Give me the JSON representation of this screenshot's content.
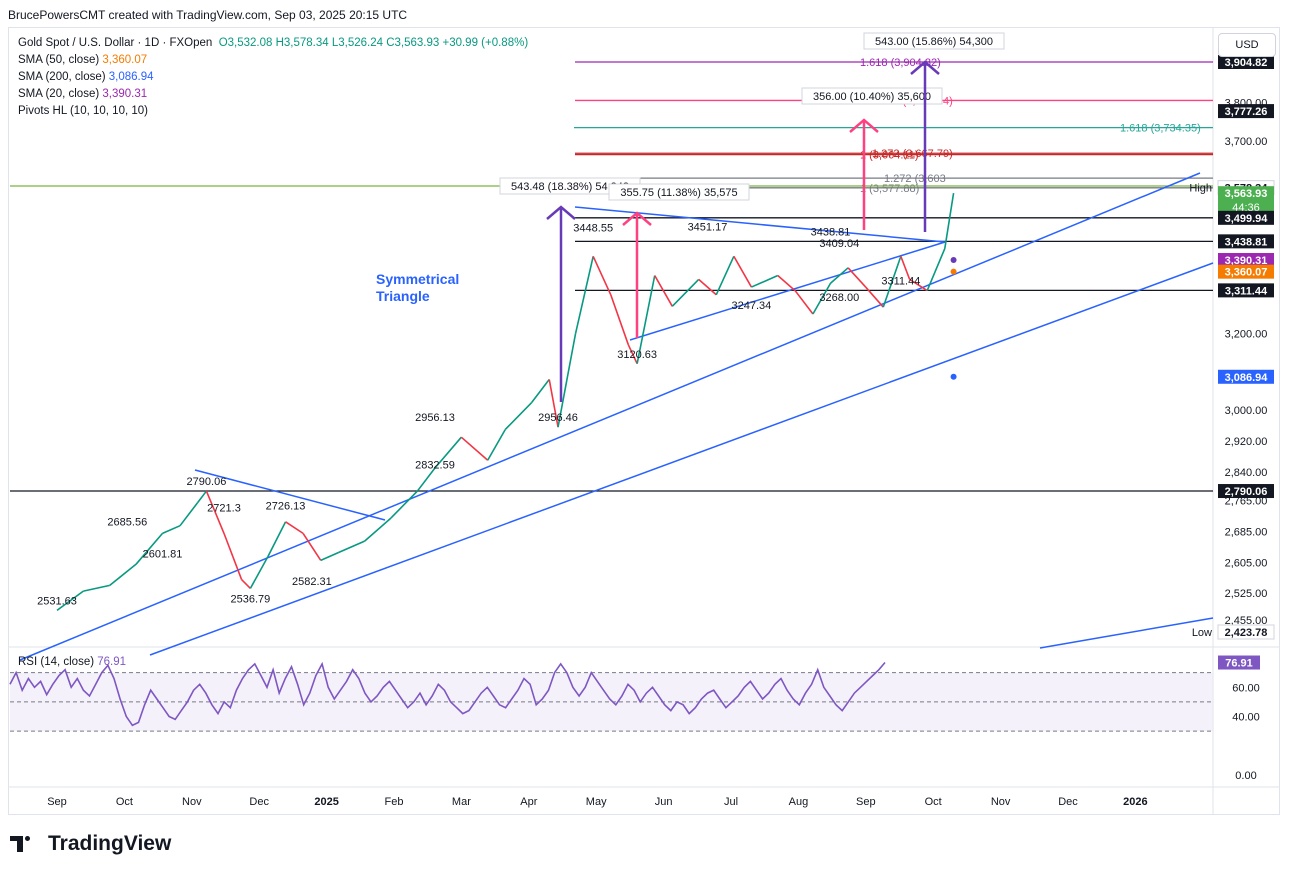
{
  "header": {
    "attribution": "BrucePowersCMT created with TradingView.com, Sep 03, 2025 20:15 UTC"
  },
  "legend": {
    "symbol": "Gold Spot / U.S. Dollar · 1D · FXOpen",
    "ohlc": "O3,532.08  H3,578.34  L3,526.24  C3,563.93  +30.99 (+0.88%)",
    "sma50": {
      "label": "SMA (50, close)",
      "value": "3,360.07",
      "color": "#f57c00"
    },
    "sma200": {
      "label": "SMA (200, close)",
      "value": "3,086.94",
      "color": "#2962ff"
    },
    "sma20": {
      "label": "SMA (20, close)",
      "value": "3,390.31",
      "color": "#9c27b0"
    },
    "pivots": "Pivots HL (10, 10, 10, 10)"
  },
  "currency": "USD",
  "branding": "TradingView",
  "colors": {
    "up": "#089981",
    "down": "#f23645",
    "trend": "#2962ff",
    "pattern": "#673ab7",
    "pink": "#ff4081",
    "rsi": "#7e57c2",
    "rsi_band": "#ede7f6",
    "green_level": "#7cb342"
  },
  "chart_data": {
    "type": "candlestick",
    "instrument": "XAUUSD",
    "timeframe": "1D",
    "ylim": [
      2400,
      3950
    ],
    "y_ticks": [
      3800.0,
      3700.0,
      3200.0,
      3000.0,
      2920.0,
      2840.0,
      2765.0,
      2685.0,
      2605.0,
      2525.0,
      2455.0
    ],
    "x_ticks": [
      "Sep",
      "Oct",
      "Nov",
      "Dec",
      "2025",
      "Feb",
      "Mar",
      "Apr",
      "May",
      "Jun",
      "Jul",
      "Aug",
      "Sep",
      "Oct",
      "Nov",
      "Dec",
      "2026"
    ],
    "price_path": [
      [
        2024.67,
        2480
      ],
      [
        2024.7,
        2530
      ],
      [
        2024.73,
        2545
      ],
      [
        2024.76,
        2600
      ],
      [
        2024.79,
        2680
      ],
      [
        2024.81,
        2700
      ],
      [
        2024.83,
        2760
      ],
      [
        2024.84,
        2790
      ],
      [
        2024.86,
        2680
      ],
      [
        2024.88,
        2560
      ],
      [
        2024.89,
        2537
      ],
      [
        2024.91,
        2620
      ],
      [
        2024.93,
        2710
      ],
      [
        2024.95,
        2680
      ],
      [
        2024.97,
        2610
      ],
      [
        2024.99,
        2630
      ],
      [
        2025.02,
        2660
      ],
      [
        2025.05,
        2720
      ],
      [
        2025.08,
        2790
      ],
      [
        2025.1,
        2850
      ],
      [
        2025.13,
        2930
      ],
      [
        2025.16,
        2870
      ],
      [
        2025.18,
        2950
      ],
      [
        2025.21,
        3020
      ],
      [
        2025.23,
        3080
      ],
      [
        2025.24,
        2956
      ],
      [
        2025.26,
        3200
      ],
      [
        2025.28,
        3400
      ],
      [
        2025.3,
        3300
      ],
      [
        2025.32,
        3170
      ],
      [
        2025.33,
        3121
      ],
      [
        2025.35,
        3350
      ],
      [
        2025.37,
        3270
      ],
      [
        2025.4,
        3340
      ],
      [
        2025.42,
        3300
      ],
      [
        2025.44,
        3400
      ],
      [
        2025.46,
        3320
      ],
      [
        2025.49,
        3350
      ],
      [
        2025.51,
        3310
      ],
      [
        2025.53,
        3250
      ],
      [
        2025.55,
        3330
      ],
      [
        2025.57,
        3370
      ],
      [
        2025.59,
        3320
      ],
      [
        2025.61,
        3268
      ],
      [
        2025.63,
        3400
      ],
      [
        2025.64,
        3340
      ],
      [
        2025.66,
        3311
      ],
      [
        2025.68,
        3420
      ],
      [
        2025.69,
        3564
      ]
    ],
    "last": {
      "open": 3532.08,
      "high": 3578.34,
      "low": 3526.24,
      "close": 3563.93,
      "change": 30.99,
      "change_pct": 0.88
    },
    "sma50": 3360.07,
    "sma200": 3086.94,
    "sma20": 3390.31,
    "price_scale_labels": [
      {
        "value": 3904.82,
        "text": "3,904.82"
      },
      {
        "value": 3777.26,
        "text": "3,777.26"
      },
      {
        "value": 3578.34,
        "text": "3,578.34",
        "caption": "High"
      },
      {
        "value": 3563.93,
        "text": "3,563.93",
        "sub": "44:36"
      },
      {
        "value": 3499.94,
        "text": "3,499.94"
      },
      {
        "value": 3438.81,
        "text": "3,438.81"
      },
      {
        "value": 3390.31,
        "text": "3,390.31"
      },
      {
        "value": 3360.07,
        "text": "3,360.07"
      },
      {
        "value": 3311.44,
        "text": "3,311.44"
      },
      {
        "value": 3086.94,
        "text": "3,086.94"
      },
      {
        "value": 2790.06,
        "text": "2,790.06"
      },
      {
        "value": 2423.78,
        "text": "2,423.78",
        "caption": "Low"
      }
    ],
    "pivot_labels": [
      {
        "x": 2024.67,
        "value": 2531.63,
        "text": "2531.63"
      },
      {
        "x": 2024.75,
        "value": 2685.56,
        "text": "2685.56"
      },
      {
        "x": 2024.79,
        "value": 2601.81,
        "text": "2601.81"
      },
      {
        "x": 2024.84,
        "value": 2790.06,
        "text": "2790.06"
      },
      {
        "x": 2024.86,
        "value": 2721.3,
        "text": "2721.3"
      },
      {
        "x": 2024.89,
        "value": 2536.79,
        "text": "2536.79"
      },
      {
        "x": 2024.93,
        "value": 2726.13,
        "text": "2726.13"
      },
      {
        "x": 2024.96,
        "value": 2582.31,
        "text": "2582.31"
      },
      {
        "x": 2025.1,
        "value": 2956.13,
        "text": "2956.13"
      },
      {
        "x": 2025.1,
        "value": 2832.59,
        "text": "2832.59"
      },
      {
        "x": 2025.24,
        "value": 2956.46,
        "text": "2956.46"
      },
      {
        "x": 2025.28,
        "value": 3448.55,
        "text": "3448.55"
      },
      {
        "x": 2025.33,
        "value": 3120.63,
        "text": "3120.63"
      },
      {
        "x": 2025.41,
        "value": 3451.17,
        "text": "3451.17"
      },
      {
        "x": 2025.46,
        "value": 3247.34,
        "text": "3247.34"
      },
      {
        "x": 2025.55,
        "value": 3438.81,
        "text": "3438.81"
      },
      {
        "x": 2025.56,
        "value": 3409.04,
        "text": "3409.04"
      },
      {
        "x": 2025.56,
        "value": 3268.0,
        "text": "3268.00"
      },
      {
        "x": 2025.63,
        "value": 3311.44,
        "text": "3311.44"
      }
    ],
    "fib_levels": [
      {
        "value": 3904.82,
        "text": "1.618 (3,904.82)",
        "color": "#9c27b0"
      },
      {
        "value": 3804.94,
        "text": "1.272 (3,804.94)",
        "color": "#ff4081"
      },
      {
        "value": 3734.35,
        "text": "1.618 (3,734.35)",
        "color": "#26a69a"
      },
      {
        "value": 3664.11,
        "text": "1 (3,664.11)",
        "color": "#c62828"
      },
      {
        "value": 3667.79,
        "text": "1.272 (3,667.79)",
        "color": "#c62828"
      },
      {
        "value": 3603.0,
        "text": "1.272 (3,603",
        "color": "#787b86"
      },
      {
        "value": 3577.88,
        "text": "1 (3,577.88)",
        "color": "#787b86"
      },
      {
        "value": 3499.94,
        "text": "",
        "color": "#131722"
      },
      {
        "value": 3438.81,
        "text": "",
        "color": "#131722"
      },
      {
        "value": 3311.44,
        "text": "",
        "color": "#131722"
      },
      {
        "value": 2790.06,
        "text": "",
        "color": "#131722"
      }
    ],
    "measurements": [
      {
        "text": "543.48 (18.38%) 54,348"
      },
      {
        "text": "355.75 (11.38%) 35,575"
      },
      {
        "text": "356.00 (10.40%) 35,600"
      },
      {
        "text": "543.00 (15.86%) 54,300"
      }
    ],
    "annotation": "Symmetrical Triangle",
    "rsi": {
      "label": "RSI (14, close)",
      "value": 76.91,
      "value_text": "76.91",
      "ylim": [
        0,
        80
      ],
      "ticks": [
        {
          "value": 60,
          "text": "60.00"
        },
        {
          "value": 40,
          "text": "40.00"
        },
        {
          "value": 0,
          "text": "0.00"
        }
      ],
      "overbought": 70,
      "oversold": 30,
      "values": [
        62,
        70,
        58,
        66,
        60,
        64,
        55,
        62,
        68,
        72,
        60,
        66,
        58,
        54,
        62,
        70,
        75,
        66,
        52,
        40,
        34,
        36,
        48,
        58,
        52,
        46,
        40,
        38,
        44,
        50,
        58,
        62,
        56,
        48,
        42,
        50,
        46,
        58,
        66,
        72,
        76,
        68,
        60,
        72,
        56,
        66,
        74,
        62,
        48,
        56,
        68,
        76,
        60,
        52,
        58,
        64,
        72,
        66,
        56,
        50,
        54,
        60,
        64,
        58,
        52,
        46,
        50,
        56,
        48,
        54,
        62,
        58,
        50,
        46,
        42,
        44,
        50,
        56,
        60,
        54,
        48,
        46,
        52,
        58,
        66,
        62,
        48,
        52,
        58,
        70,
        76,
        70,
        60,
        54,
        60,
        70,
        64,
        58,
        52,
        48,
        54,
        62,
        58,
        50,
        56,
        60,
        54,
        48,
        44,
        50,
        48,
        42,
        46,
        52,
        56,
        58,
        52,
        46,
        50,
        54,
        60,
        64,
        58,
        52,
        56,
        62,
        66,
        58,
        52,
        48,
        56,
        62,
        72,
        60,
        54,
        48,
        44,
        50,
        56,
        60,
        64,
        68,
        72,
        76.91
      ]
    }
  }
}
